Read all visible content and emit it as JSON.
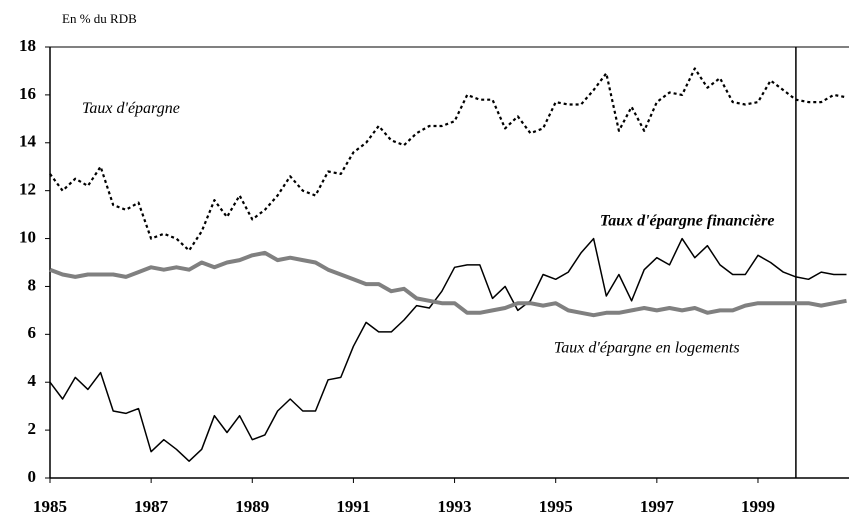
{
  "chart_data": {
    "type": "line",
    "y_axis_label": "En % du RDB",
    "x": [
      1985,
      1985.25,
      1985.5,
      1985.75,
      1986,
      1986.25,
      1986.5,
      1986.75,
      1987,
      1987.25,
      1987.5,
      1987.75,
      1988,
      1988.25,
      1988.5,
      1988.75,
      1989,
      1989.25,
      1989.5,
      1989.75,
      1990,
      1990.25,
      1990.5,
      1990.75,
      1991,
      1991.25,
      1991.5,
      1991.75,
      1992,
      1992.25,
      1992.5,
      1992.75,
      1993,
      1993.25,
      1993.5,
      1993.75,
      1994,
      1994.25,
      1994.5,
      1994.75,
      1995,
      1995.25,
      1995.5,
      1995.75,
      1996,
      1996.25,
      1996.5,
      1996.75,
      1997,
      1997.25,
      1997.5,
      1997.75,
      1998,
      1998.25,
      1998.5,
      1998.75,
      1999,
      1999.25,
      1999.5,
      1999.75,
      2000,
      2000.25,
      2000.5,
      2000.75
    ],
    "series": [
      {
        "name": "Taux d'épargne",
        "color": "#000000",
        "style": "dotted",
        "values": [
          12.7,
          12.0,
          12.5,
          12.2,
          13.0,
          11.4,
          11.2,
          11.5,
          10.0,
          10.2,
          10.0,
          9.5,
          10.3,
          11.6,
          10.9,
          11.8,
          10.8,
          11.2,
          11.8,
          12.6,
          12.0,
          11.8,
          12.8,
          12.7,
          13.6,
          14.0,
          14.7,
          14.1,
          13.9,
          14.4,
          14.7,
          14.7,
          14.9,
          16.0,
          15.8,
          15.8,
          14.6,
          15.1,
          14.4,
          14.6,
          15.7,
          15.6,
          15.6,
          16.2,
          16.9,
          14.5,
          15.5,
          14.5,
          15.7,
          16.1,
          16.0,
          17.1,
          16.3,
          16.7,
          15.7,
          15.6,
          15.7,
          16.6,
          16.2,
          15.8,
          15.7,
          15.7,
          16.0,
          15.9
        ]
      },
      {
        "name": "Taux d'épargne financière",
        "color": "#000000",
        "style": "solid",
        "values": [
          4.0,
          3.3,
          4.2,
          3.7,
          4.4,
          2.8,
          2.7,
          2.9,
          1.1,
          1.6,
          1.2,
          0.7,
          1.2,
          2.6,
          1.9,
          2.6,
          1.6,
          1.8,
          2.8,
          3.3,
          2.8,
          2.8,
          4.1,
          4.2,
          5.5,
          6.5,
          6.1,
          6.1,
          6.6,
          7.2,
          7.1,
          7.8,
          8.8,
          8.9,
          8.9,
          7.5,
          8.0,
          7.0,
          7.4,
          8.5,
          8.3,
          8.6,
          9.4,
          10.0,
          7.6,
          8.5,
          7.4,
          8.7,
          9.2,
          8.9,
          10.0,
          9.2,
          9.7,
          8.9,
          8.5,
          8.5,
          9.3,
          9.0,
          8.6,
          8.4,
          8.3,
          8.6,
          8.5,
          8.5
        ]
      },
      {
        "name": "Taux d'épargne en logements",
        "color": "#808080",
        "style": "thick",
        "values": [
          8.7,
          8.5,
          8.4,
          8.5,
          8.5,
          8.5,
          8.4,
          8.6,
          8.8,
          8.7,
          8.8,
          8.7,
          9.0,
          8.8,
          9.0,
          9.1,
          9.3,
          9.4,
          9.1,
          9.2,
          9.1,
          9.0,
          8.7,
          8.5,
          8.3,
          8.1,
          8.1,
          7.8,
          7.9,
          7.5,
          7.4,
          7.3,
          7.3,
          6.9,
          6.9,
          7.0,
          7.1,
          7.3,
          7.3,
          7.2,
          7.3,
          7.0,
          6.9,
          6.8,
          6.9,
          6.9,
          7.0,
          7.1,
          7.0,
          7.1,
          7.0,
          7.1,
          6.9,
          7.0,
          7.0,
          7.2,
          7.3,
          7.3,
          7.3,
          7.3,
          7.3,
          7.2,
          7.3,
          7.4
        ]
      }
    ],
    "vline": 1999.75,
    "xlim": [
      1985,
      2000.8
    ],
    "xticks": [
      1985,
      1987,
      1989,
      1991,
      1993,
      1995,
      1997,
      1999
    ],
    "ylim": [
      0,
      18
    ],
    "yticks": [
      0,
      2,
      4,
      6,
      8,
      10,
      12,
      14,
      16,
      18
    ],
    "grid": false
  }
}
